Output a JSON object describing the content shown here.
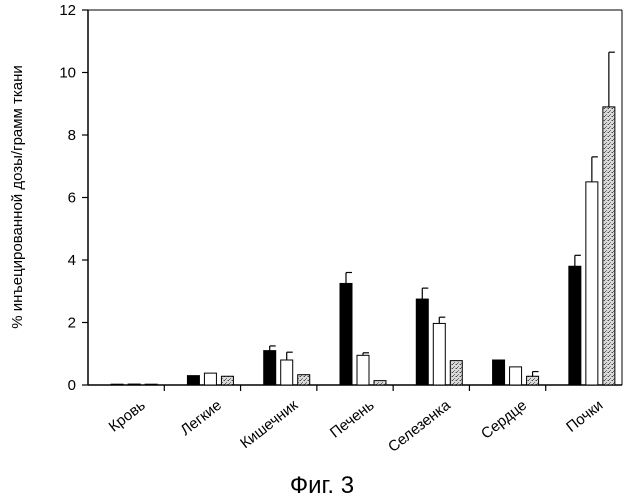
{
  "chart_data": {
    "type": "bar",
    "title": "",
    "caption": "Фиг. 3",
    "xlabel": "",
    "ylabel": "% инъецированной дозы/грамм ткани",
    "ylim": [
      0,
      12
    ],
    "yticks": [
      "0",
      "2",
      "4",
      "6",
      "8",
      "10",
      "12"
    ],
    "categories": [
      "Кровь",
      "Легкие",
      "Кишечник",
      "Печень",
      "Селезенка",
      "Сердце",
      "Почки"
    ],
    "series": [
      {
        "name": "series-1",
        "fill": "solid-black",
        "values": [
          0.0,
          0.3,
          1.1,
          3.25,
          2.75,
          0.8,
          3.8
        ],
        "errors": [
          0.0,
          0.0,
          0.15,
          0.35,
          0.35,
          0.0,
          0.35
        ]
      },
      {
        "name": "series-2",
        "fill": "white",
        "values": [
          0.03,
          0.38,
          0.8,
          0.95,
          1.97,
          0.58,
          6.5
        ],
        "errors": [
          0.0,
          0.0,
          0.25,
          0.08,
          0.2,
          0.0,
          0.8
        ]
      },
      {
        "name": "series-3",
        "fill": "stippled",
        "values": [
          0.02,
          0.28,
          0.33,
          0.14,
          0.78,
          0.28,
          8.9
        ],
        "errors": [
          0.0,
          0.0,
          0.0,
          0.0,
          0.0,
          0.15,
          1.75
        ]
      }
    ],
    "colors": {
      "black": "#000000",
      "white": "#ffffff",
      "stipple_bg": "#d8d8d8",
      "stipple_dot": "#555555"
    }
  }
}
